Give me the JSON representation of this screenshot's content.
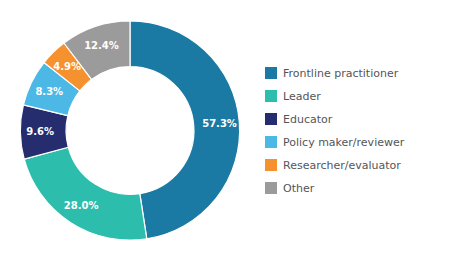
{
  "chart_data": {
    "type": "pie",
    "categories": [
      "Frontline practitioner",
      "Leader",
      "Educator",
      "Policy maker/reviewer",
      "Researcher/evaluator",
      "Other"
    ],
    "values": [
      57.3,
      28.0,
      9.6,
      8.3,
      4.9,
      12.4
    ],
    "value_labels": [
      "57.3%",
      "28.0%",
      "9.6%",
      "8.3%",
      "4.9%",
      "12.4%"
    ],
    "colors": [
      "#1a7aa3",
      "#2dbdac",
      "#252d6e",
      "#4cb8e6",
      "#f5922f",
      "#9b9b9b"
    ],
    "data_labels": true,
    "legend": "right"
  }
}
